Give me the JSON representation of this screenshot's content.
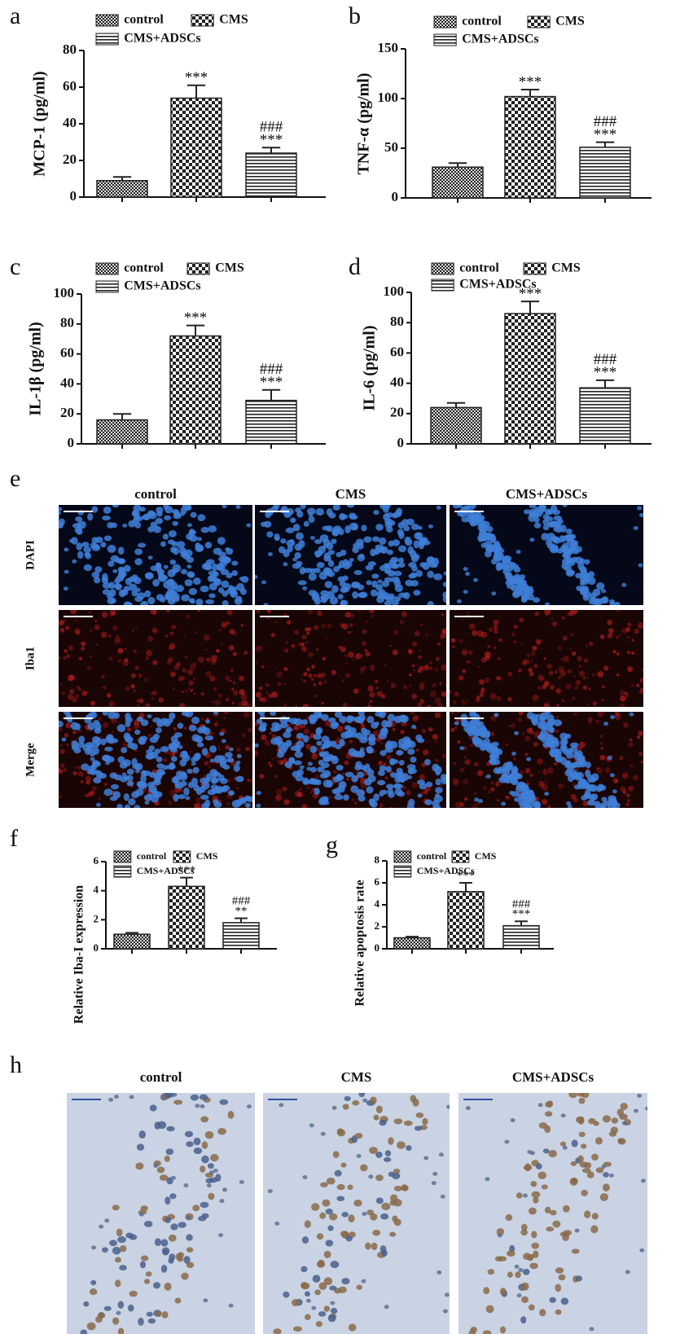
{
  "chart_data": [
    {
      "type": "bar",
      "label": "a",
      "ylabel": "MCP-1 (pg/ml)",
      "ylim": [
        0,
        80
      ],
      "yticks": [
        0,
        20,
        40,
        60,
        80
      ],
      "series": [
        {
          "name": "control",
          "pattern": "fine-check",
          "color": "#222222",
          "values": [
            9
          ],
          "errors": [
            2
          ]
        },
        {
          "name": "CMS",
          "pattern": "check",
          "color": "#222222",
          "values": [
            54
          ],
          "errors": [
            7
          ],
          "annotation": [
            "***"
          ]
        },
        {
          "name": "CMS+ADSCs",
          "pattern": "stripes",
          "color": "#222222",
          "values": [
            24
          ],
          "errors": [
            3
          ],
          "annotation": [
            "###",
            "***"
          ]
        }
      ]
    },
    {
      "type": "bar",
      "label": "b",
      "ylabel": "TNF-α  (pg/ml)",
      "ylim": [
        0,
        150
      ],
      "yticks": [
        0,
        50,
        100,
        150
      ],
      "series": [
        {
          "name": "control",
          "pattern": "fine-check",
          "color": "#222222",
          "values": [
            31
          ],
          "errors": [
            4
          ]
        },
        {
          "name": "CMS",
          "pattern": "check",
          "color": "#222222",
          "values": [
            102
          ],
          "errors": [
            7
          ],
          "annotation": [
            "***"
          ]
        },
        {
          "name": "CMS+ADSCs",
          "pattern": "stripes",
          "color": "#222222",
          "values": [
            51
          ],
          "errors": [
            5
          ],
          "annotation": [
            "###",
            "***"
          ]
        }
      ]
    },
    {
      "type": "bar",
      "label": "c",
      "ylabel": "IL-1β  (pg/ml)",
      "ylim": [
        0,
        100
      ],
      "yticks": [
        0,
        20,
        40,
        60,
        80,
        100
      ],
      "series": [
        {
          "name": "control",
          "pattern": "fine-check",
          "color": "#222222",
          "values": [
            16
          ],
          "errors": [
            4
          ]
        },
        {
          "name": "CMS",
          "pattern": "check",
          "color": "#222222",
          "values": [
            72
          ],
          "errors": [
            7
          ],
          "annotation": [
            "***"
          ]
        },
        {
          "name": "CMS+ADSCs",
          "pattern": "stripes",
          "color": "#222222",
          "values": [
            29
          ],
          "errors": [
            7
          ],
          "annotation": [
            "###",
            "***"
          ]
        }
      ]
    },
    {
      "type": "bar",
      "label": "d",
      "ylabel": "IL-6 (pg/ml)",
      "ylim": [
        0,
        100
      ],
      "yticks": [
        0,
        20,
        40,
        60,
        80,
        100
      ],
      "series": [
        {
          "name": "control",
          "pattern": "fine-check",
          "color": "#222222",
          "values": [
            24
          ],
          "errors": [
            3
          ]
        },
        {
          "name": "CMS",
          "pattern": "check",
          "color": "#222222",
          "values": [
            86
          ],
          "errors": [
            8
          ],
          "annotation": [
            "***"
          ]
        },
        {
          "name": "CMS+ADSCs",
          "pattern": "stripes",
          "color": "#222222",
          "values": [
            37
          ],
          "errors": [
            5
          ],
          "annotation": [
            "###",
            "***"
          ]
        }
      ]
    },
    {
      "type": "bar",
      "label": "f",
      "ylabel": "Relative Iba-I expression",
      "ylim": [
        0,
        6
      ],
      "yticks": [
        0,
        2,
        4,
        6
      ],
      "series": [
        {
          "name": "control",
          "pattern": "fine-check",
          "color": "#222222",
          "values": [
            1.0
          ],
          "errors": [
            0.1
          ]
        },
        {
          "name": "CMS",
          "pattern": "check",
          "color": "#222222",
          "values": [
            4.3
          ],
          "errors": [
            0.6
          ],
          "annotation": [
            "***"
          ]
        },
        {
          "name": "CMS+ADSCs",
          "pattern": "stripes",
          "color": "#222222",
          "values": [
            1.8
          ],
          "errors": [
            0.3
          ],
          "annotation": [
            "###",
            "**"
          ]
        }
      ]
    },
    {
      "type": "bar",
      "label": "g",
      "ylabel": "Relative apoptosis rate",
      "ylim": [
        0,
        8
      ],
      "yticks": [
        0,
        2,
        4,
        6,
        8
      ],
      "series": [
        {
          "name": "control",
          "pattern": "fine-check",
          "color": "#222222",
          "values": [
            1.0
          ],
          "errors": [
            0.1
          ]
        },
        {
          "name": "CMS",
          "pattern": "check",
          "color": "#222222",
          "values": [
            5.2
          ],
          "errors": [
            0.8
          ],
          "annotation": [
            "***"
          ]
        },
        {
          "name": "CMS+ADSCs",
          "pattern": "stripes",
          "color": "#222222",
          "values": [
            2.1
          ],
          "errors": [
            0.4
          ],
          "annotation": [
            "###",
            "***"
          ]
        }
      ]
    }
  ],
  "image_panels": [
    {
      "label": "e",
      "columns": [
        "control",
        "CMS",
        "CMS+ADSCs"
      ],
      "rows": [
        "DAPI",
        "Iba1",
        "Merge"
      ]
    },
    {
      "label": "h",
      "columns": [
        "control",
        "CMS",
        "CMS+ADSCs"
      ]
    }
  ]
}
